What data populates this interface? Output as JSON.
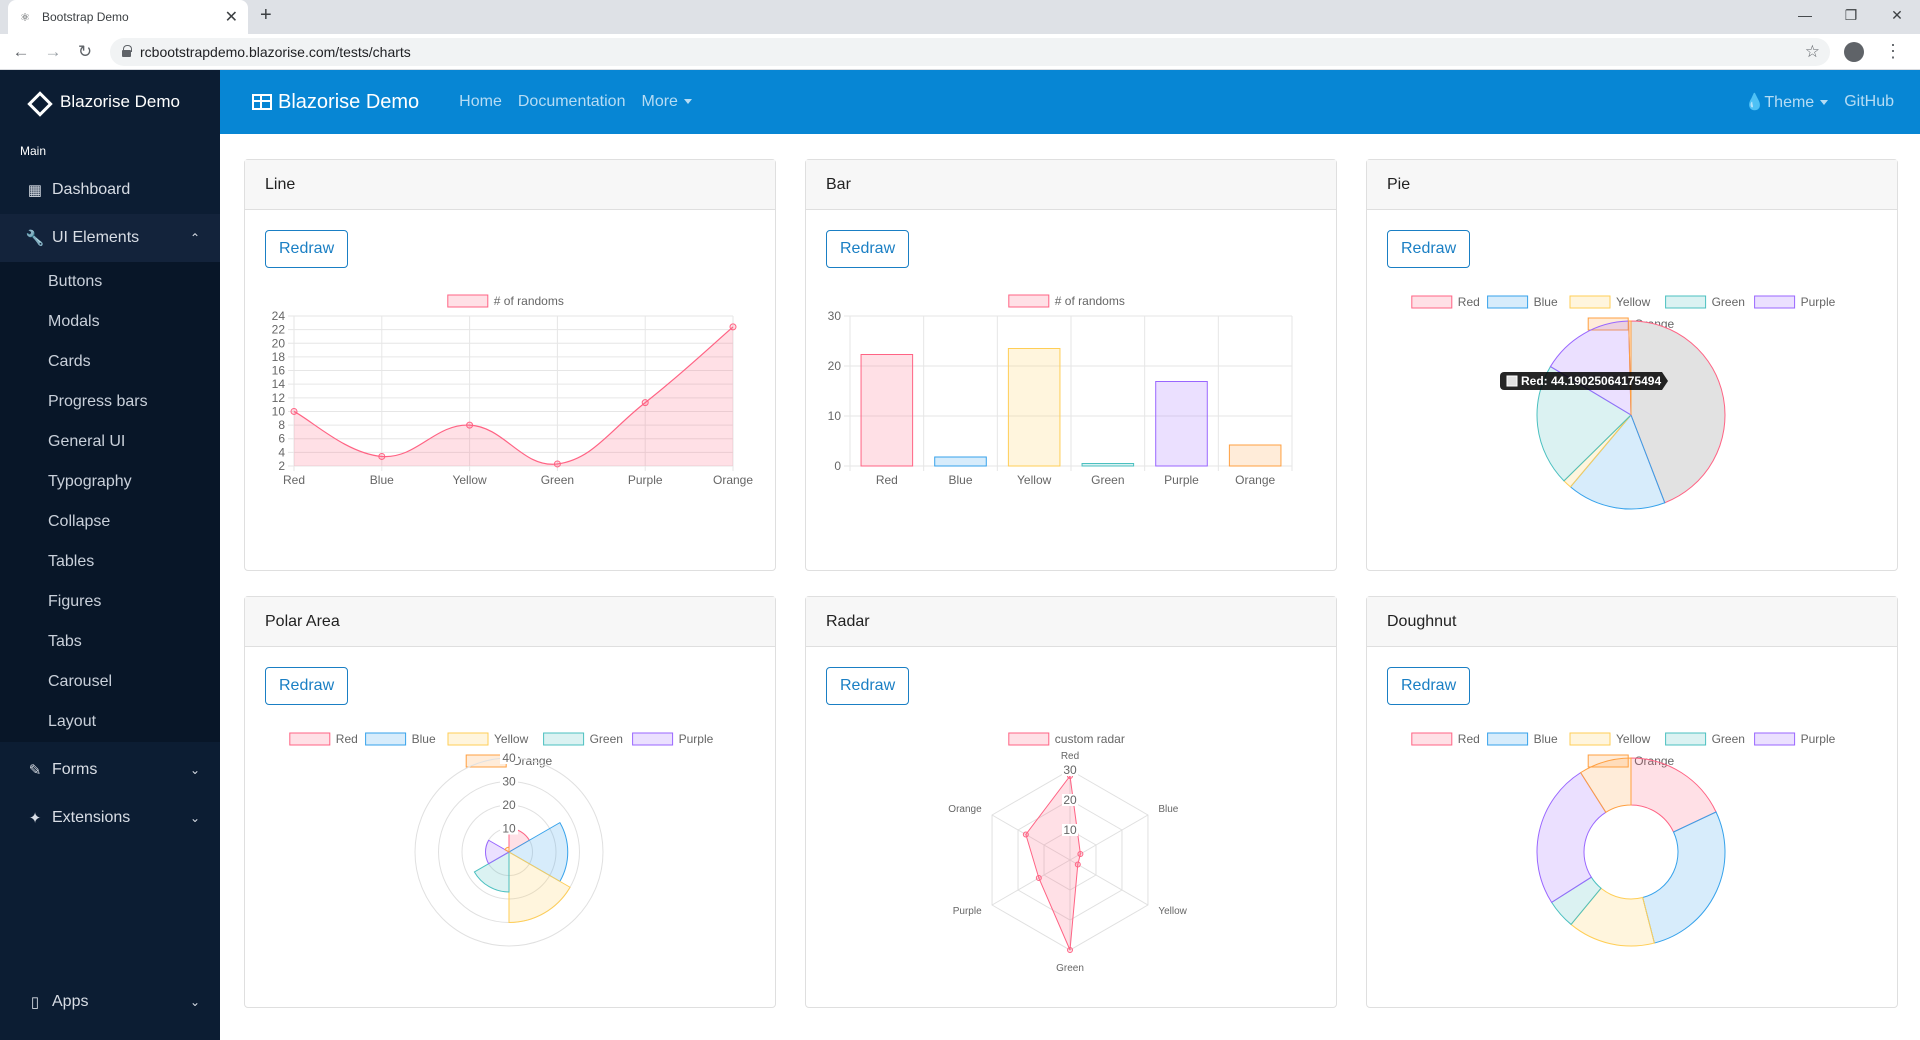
{
  "browser": {
    "tab_title": "Bootstrap Demo",
    "url": "rcbootstrapdemo.blazorise.com/tests/charts"
  },
  "sidebar": {
    "brand": "Blazorise Demo",
    "section": "Main",
    "dashboard": "Dashboard",
    "ui_elements": "UI Elements",
    "sub_items": [
      "Buttons",
      "Modals",
      "Cards",
      "Progress bars",
      "General UI",
      "Typography",
      "Collapse",
      "Tables",
      "Figures",
      "Tabs",
      "Carousel",
      "Layout"
    ],
    "forms": "Forms",
    "extensions": "Extensions",
    "apps": "Apps"
  },
  "topbar": {
    "brand": "Blazorise Demo",
    "home": "Home",
    "documentation": "Documentation",
    "more": "More",
    "theme": "Theme",
    "github": "GitHub"
  },
  "common": {
    "redraw": "Redraw"
  },
  "colors": {
    "red": "#ff6384",
    "blue": "#36a2eb",
    "yellow": "#ffce56",
    "green": "#4bc0c0",
    "purple": "#9966ff",
    "orange": "#ff9f40",
    "fill_red": "rgba(255,99,132,0.2)",
    "fill_blue": "rgba(54,162,235,0.2)",
    "fill_yellow": "rgba(255,206,86,0.2)",
    "fill_green": "rgba(75,192,192,0.2)",
    "fill_purple": "rgba(153,102,255,0.2)",
    "fill_orange": "rgba(255,159,64,0.2)"
  },
  "cards": {
    "line": "Line",
    "bar": "Bar",
    "pie": "Pie",
    "polar": "Polar Area",
    "radar": "Radar",
    "doughnut": "Doughnut"
  },
  "chart_data": [
    {
      "id": "line",
      "type": "line",
      "legend": "# of randoms",
      "categories": [
        "Red",
        "Blue",
        "Yellow",
        "Green",
        "Purple",
        "Orange"
      ],
      "values": [
        10,
        3.4,
        8,
        2.3,
        11.3,
        22.4
      ],
      "ylim": [
        2,
        24
      ],
      "yticks": [
        "2",
        "4",
        "6",
        "8",
        "10",
        "12",
        "14",
        "16",
        "18",
        "20",
        "22",
        "24"
      ]
    },
    {
      "id": "bar",
      "type": "bar",
      "legend": "# of randoms",
      "categories": [
        "Red",
        "Blue",
        "Yellow",
        "Green",
        "Purple",
        "Orange"
      ],
      "values": [
        22.3,
        1.8,
        23.5,
        0.5,
        16.9,
        4.2
      ],
      "ylim": [
        0,
        30
      ],
      "yticks": [
        "0",
        "10",
        "20",
        "30"
      ]
    },
    {
      "id": "pie",
      "type": "pie",
      "legend": [
        "Red",
        "Blue",
        "Yellow",
        "Green",
        "Purple",
        "Orange"
      ],
      "values": [
        44.19,
        17,
        1.5,
        21,
        16,
        0.4
      ],
      "tooltip": "Red: 44.19025064175494"
    },
    {
      "id": "polar",
      "type": "polar",
      "legend": [
        "Red",
        "Blue",
        "Yellow",
        "Green",
        "Purple",
        "Orange"
      ],
      "values": [
        10,
        25,
        30,
        17,
        10,
        2
      ],
      "rmax": 40,
      "rticks": [
        "10",
        "20",
        "30",
        "40"
      ]
    },
    {
      "id": "radar",
      "type": "radar",
      "legend": "custom radar",
      "labels": [
        "Red",
        "Blue",
        "Yellow",
        "Green",
        "Purple",
        "Orange"
      ],
      "values": [
        28,
        4,
        3,
        30,
        12,
        17
      ],
      "rmax": 30,
      "rticks": [
        "10",
        "20",
        "30"
      ]
    },
    {
      "id": "doughnut",
      "type": "doughnut",
      "legend": [
        "Red",
        "Blue",
        "Yellow",
        "Green",
        "Purple",
        "Orange"
      ],
      "values": [
        18,
        28,
        15,
        5,
        25,
        9
      ]
    }
  ]
}
